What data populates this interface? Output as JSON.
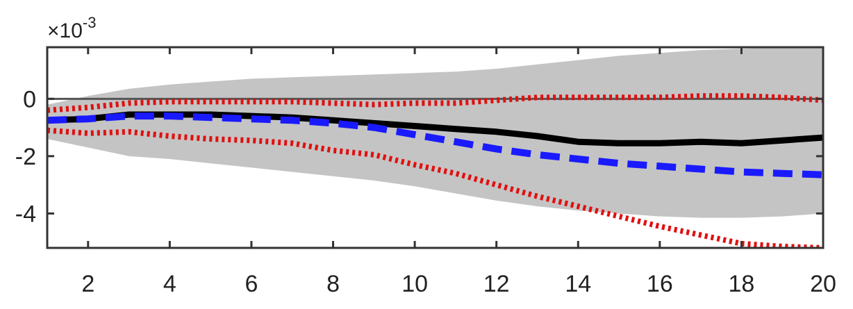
{
  "chart_data": {
    "type": "area",
    "title": "",
    "xlabel": "",
    "ylabel": "",
    "exponent_label": {
      "prefix": "×",
      "base": "10",
      "power": "-3"
    },
    "xlim": [
      1,
      20
    ],
    "ylim": [
      -5.2,
      1.8
    ],
    "x_ticks": [
      2,
      4,
      6,
      8,
      10,
      12,
      14,
      16,
      18,
      20
    ],
    "y_ticks": [
      0,
      -2,
      -4
    ],
    "grid": false,
    "legend": "none",
    "x": [
      1,
      2,
      3,
      4,
      5,
      6,
      7,
      8,
      9,
      10,
      11,
      12,
      13,
      14,
      15,
      16,
      17,
      18,
      19,
      20
    ],
    "band": {
      "color": "#c4c4c4",
      "upper": [
        -0.2,
        0.1,
        0.35,
        0.5,
        0.6,
        0.7,
        0.75,
        0.8,
        0.85,
        0.9,
        0.95,
        1.05,
        1.2,
        1.35,
        1.5,
        1.6,
        1.7,
        1.75,
        1.8,
        1.8
      ],
      "lower": [
        -1.4,
        -1.7,
        -2.0,
        -2.1,
        -2.25,
        -2.4,
        -2.55,
        -2.7,
        -2.85,
        -3.05,
        -3.3,
        -3.55,
        -3.75,
        -3.9,
        -4.0,
        -4.1,
        -4.15,
        -4.15,
        -4.1,
        -4.0
      ]
    },
    "zero_line": {
      "y": 0,
      "color": "#555555"
    },
    "series": [
      {
        "style": "solid",
        "color": "#000000",
        "values": [
          -0.75,
          -0.7,
          -0.55,
          -0.55,
          -0.55,
          -0.6,
          -0.65,
          -0.75,
          -0.85,
          -0.95,
          -1.05,
          -1.15,
          -1.3,
          -1.5,
          -1.55,
          -1.55,
          -1.5,
          -1.55,
          -1.45,
          -1.35
        ]
      },
      {
        "style": "dashed",
        "color": "#1a1aff",
        "values": [
          -0.75,
          -0.7,
          -0.6,
          -0.6,
          -0.65,
          -0.7,
          -0.75,
          -0.85,
          -1.0,
          -1.25,
          -1.5,
          -1.75,
          -1.95,
          -2.1,
          -2.25,
          -2.35,
          -2.45,
          -2.55,
          -2.6,
          -2.65
        ]
      },
      {
        "style": "dotted",
        "color": "#e01010",
        "values": [
          -0.4,
          -0.3,
          -0.15,
          -0.1,
          -0.1,
          -0.1,
          -0.1,
          -0.15,
          -0.2,
          -0.15,
          -0.15,
          -0.05,
          0.05,
          0.05,
          0.05,
          0.05,
          0.1,
          0.1,
          0.05,
          -0.05
        ]
      },
      {
        "style": "dotted",
        "color": "#e01010",
        "values": [
          -1.1,
          -1.2,
          -1.15,
          -1.3,
          -1.4,
          -1.45,
          -1.55,
          -1.8,
          -1.95,
          -2.3,
          -2.6,
          -3.0,
          -3.4,
          -3.75,
          -4.1,
          -4.45,
          -4.75,
          -5.05,
          -5.15,
          -5.2
        ]
      }
    ]
  }
}
